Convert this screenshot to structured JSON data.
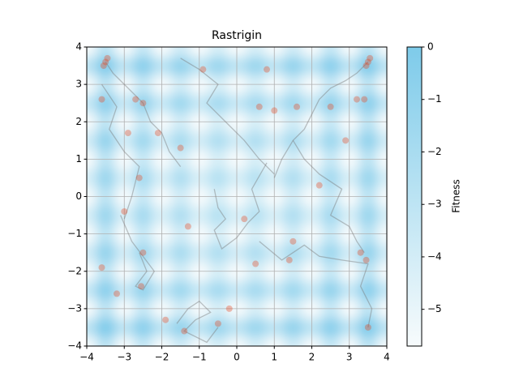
{
  "chart_data": {
    "type": "heatmap-trajectories",
    "title": "Rastrigin",
    "colorbar_label": "Fitness",
    "xlim": [
      -4,
      4
    ],
    "ylim": [
      -4,
      4
    ],
    "xticks": [
      {
        "value": -4,
        "label": "−4"
      },
      {
        "value": -3,
        "label": "−3"
      },
      {
        "value": -2,
        "label": "−2"
      },
      {
        "value": -1,
        "label": "−1"
      },
      0,
      1,
      2,
      3,
      4
    ],
    "yticks": [
      {
        "value": -4,
        "label": "−4"
      },
      {
        "value": -3,
        "label": "−3"
      },
      {
        "value": -2,
        "label": "−2"
      },
      {
        "value": -1,
        "label": "−1"
      },
      0,
      1,
      2,
      3,
      4
    ],
    "grid": true,
    "clim": [
      -5.7,
      0
    ],
    "cticks": [
      0,
      {
        "value": -1,
        "label": "−1"
      },
      {
        "value": -2,
        "label": "−2"
      },
      {
        "value": -3,
        "label": "−3"
      },
      {
        "value": -4,
        "label": "−4"
      },
      {
        "value": -5,
        "label": "−5"
      }
    ],
    "cmap": [
      "#f7fbfc",
      "#7ecbea"
    ],
    "heatmap": {
      "x": [
        -4,
        -3.5,
        -3,
        -2.5,
        -2,
        -1.5,
        -1,
        -0.5,
        0,
        0.5,
        1,
        1.5,
        2,
        2.5,
        3,
        3.5,
        4
      ],
      "y": [
        -4,
        -3.5,
        -3,
        -2.5,
        -2,
        -1.5,
        -1,
        -0.5,
        0,
        0.5,
        1,
        1.5,
        2,
        2.5,
        3,
        3.5,
        4
      ],
      "z": [
        [
          -5.7,
          -2.85,
          -5.7,
          -3.35,
          -5.7,
          -3.85,
          -5.7,
          -4.15,
          -5.7,
          -4.15,
          -5.7,
          -3.85,
          -5.7,
          -3.35,
          -5.7,
          -2.85,
          -5.7
        ],
        [
          -2.85,
          0,
          -2.85,
          -0.5,
          -2.85,
          -1,
          -2.85,
          -1.3,
          -2.85,
          -1.3,
          -2.85,
          -1,
          -2.85,
          -0.5,
          -2.85,
          0,
          -2.85
        ],
        [
          -5.7,
          -2.85,
          -5.7,
          -3.35,
          -5.7,
          -3.85,
          -5.7,
          -4.15,
          -5.7,
          -4.15,
          -5.7,
          -3.85,
          -5.7,
          -3.35,
          -5.7,
          -2.85,
          -5.7
        ],
        [
          -3.35,
          -0.5,
          -3.35,
          -1,
          -3.35,
          -1.5,
          -3.35,
          -1.8,
          -3.35,
          -1.8,
          -3.35,
          -1.5,
          -3.35,
          -1,
          -3.35,
          -0.5,
          -3.35
        ],
        [
          -5.7,
          -2.85,
          -5.7,
          -3.35,
          -5.7,
          -3.85,
          -5.7,
          -4.15,
          -5.7,
          -4.15,
          -5.7,
          -3.85,
          -5.7,
          -3.35,
          -5.7,
          -2.85,
          -5.7
        ],
        [
          -3.85,
          -1,
          -3.85,
          -1.5,
          -3.85,
          -2,
          -3.85,
          -2.3,
          -3.85,
          -2.3,
          -3.85,
          -2,
          -3.85,
          -1.5,
          -3.85,
          -1,
          -3.85
        ],
        [
          -5.7,
          -2.85,
          -5.7,
          -3.35,
          -5.7,
          -3.85,
          -5.7,
          -4.15,
          -5.7,
          -4.15,
          -5.7,
          -3.85,
          -5.7,
          -3.35,
          -5.7,
          -2.85,
          -5.7
        ],
        [
          -4.15,
          -1.3,
          -4.15,
          -1.8,
          -4.15,
          -2.3,
          -4.15,
          -2.6,
          -4.15,
          -2.6,
          -4.15,
          -2.3,
          -4.15,
          -1.8,
          -4.15,
          -1.3,
          -4.15
        ],
        [
          -5.7,
          -2.85,
          -5.7,
          -3.35,
          -5.7,
          -3.85,
          -5.7,
          -4.15,
          -5.7,
          -4.15,
          -5.7,
          -3.85,
          -5.7,
          -3.35,
          -5.7,
          -2.85,
          -5.7
        ],
        [
          -4.15,
          -1.3,
          -4.15,
          -1.8,
          -4.15,
          -2.3,
          -4.15,
          -2.6,
          -4.15,
          -2.6,
          -4.15,
          -2.3,
          -4.15,
          -1.8,
          -4.15,
          -1.3,
          -4.15
        ],
        [
          -5.7,
          -2.85,
          -5.7,
          -3.35,
          -5.7,
          -3.85,
          -5.7,
          -4.15,
          -5.7,
          -4.15,
          -5.7,
          -3.85,
          -5.7,
          -3.35,
          -5.7,
          -2.85,
          -5.7
        ],
        [
          -3.85,
          -1,
          -3.85,
          -1.5,
          -3.85,
          -2,
          -3.85,
          -2.3,
          -3.85,
          -2.3,
          -3.85,
          -2,
          -3.85,
          -1.5,
          -3.85,
          -1,
          -3.85
        ],
        [
          -5.7,
          -2.85,
          -5.7,
          -3.35,
          -5.7,
          -3.85,
          -5.7,
          -4.15,
          -5.7,
          -4.15,
          -5.7,
          -3.85,
          -5.7,
          -3.35,
          -5.7,
          -2.85,
          -5.7
        ],
        [
          -3.35,
          -0.5,
          -3.35,
          -1,
          -3.35,
          -1.5,
          -3.35,
          -1.8,
          -3.35,
          -1.8,
          -3.35,
          -1.5,
          -3.35,
          -1,
          -3.35,
          -0.5,
          -3.35
        ],
        [
          -5.7,
          -2.85,
          -5.7,
          -3.35,
          -5.7,
          -3.85,
          -5.7,
          -4.15,
          -5.7,
          -4.15,
          -5.7,
          -3.85,
          -5.7,
          -3.35,
          -5.7,
          -2.85,
          -5.7
        ],
        [
          -2.85,
          0,
          -2.85,
          -0.5,
          -2.85,
          -1,
          -2.85,
          -1.3,
          -2.85,
          -1.3,
          -2.85,
          -1,
          -2.85,
          -0.5,
          -2.85,
          0,
          -2.85
        ],
        [
          -5.7,
          -2.85,
          -5.7,
          -3.35,
          -5.7,
          -3.85,
          -5.7,
          -4.15,
          -5.7,
          -4.15,
          -5.7,
          -3.85,
          -5.7,
          -3.35,
          -5.7,
          -2.85,
          -5.7
        ]
      ]
    },
    "path_color": "#7a7a7a",
    "paths": [
      {
        "x": [
          -3.5,
          -3.3,
          -3.0,
          -2.7,
          -2.5,
          -2.3,
          -2.0,
          -1.8,
          -1.5
        ],
        "y": [
          3.6,
          3.3,
          3.0,
          2.7,
          2.5,
          2.0,
          1.7,
          1.2,
          0.8
        ]
      },
      {
        "x": [
          3.5,
          3.2,
          2.9,
          2.5,
          2.2,
          2.0,
          1.8,
          1.5,
          1.2,
          1.0
        ],
        "y": [
          3.6,
          3.3,
          3.1,
          2.9,
          2.6,
          2.2,
          1.8,
          1.5,
          1.0,
          0.5
        ]
      },
      {
        "x": [
          -0.6,
          -0.5,
          -0.3,
          -0.6,
          -0.4,
          0,
          0.3,
          0.6,
          0.4,
          0.8
        ],
        "y": [
          0.2,
          -0.3,
          -0.6,
          -0.9,
          -1.4,
          -1.1,
          -0.7,
          -0.4,
          0.2,
          0.9
        ]
      },
      {
        "x": [
          -2.6,
          -2.4,
          -2.7,
          -2.5,
          -2.2,
          -2.8,
          -3.1
        ],
        "y": [
          -1.5,
          -2.0,
          -2.4,
          -2.5,
          -2.0,
          -1.2,
          -0.5
        ]
      },
      {
        "x": [
          -1.6,
          -1.3,
          -1.0,
          -0.7,
          -1.1,
          -1.4,
          -0.8,
          -0.5
        ],
        "y": [
          -3.4,
          -3.0,
          -2.8,
          -3.1,
          -3.3,
          -3.6,
          -3.9,
          -3.5
        ]
      },
      {
        "x": [
          3.4,
          3.2,
          3.0,
          2.5,
          2.8,
          2.2,
          1.8,
          1.5
        ],
        "y": [
          -1.5,
          -1.2,
          -0.8,
          -0.5,
          0.2,
          0.6,
          1.0,
          1.5
        ]
      },
      {
        "x": [
          -1.5,
          -1.0,
          -0.5,
          -0.8,
          -0.3,
          0.2,
          0.6,
          1.0
        ],
        "y": [
          3.7,
          3.4,
          3.0,
          2.5,
          2.0,
          1.5,
          1.0,
          0.6
        ]
      },
      {
        "x": [
          -3.6,
          -3.2,
          -3.4,
          -3.0,
          -2.6,
          -2.8,
          -3.0
        ],
        "y": [
          3.0,
          2.4,
          1.8,
          1.2,
          0.8,
          0.0,
          -0.6
        ]
      },
      {
        "x": [
          3.5,
          3.6,
          3.3,
          3.5,
          2.8,
          2.2,
          1.8,
          1.2,
          0.6
        ],
        "y": [
          -3.5,
          -3.0,
          -2.4,
          -1.8,
          -1.7,
          -1.6,
          -1.3,
          -1.7,
          -1.2
        ]
      }
    ],
    "points": {
      "color": "#e8461e",
      "x": [
        -3.5,
        -3.55,
        -3.45,
        -3.6,
        3.5,
        3.45,
        3.55,
        3.4,
        -2.7,
        -2.5,
        -2.9,
        -2.6,
        -2.5,
        -2.55,
        -3.0,
        -1.5,
        -1.3,
        -0.5,
        0.2,
        0.5,
        1.0,
        1.4,
        1.6,
        0.8,
        2.5,
        2.9,
        3.3,
        3.5,
        3.45,
        -2.1,
        -1.9,
        0.6,
        1.5,
        -0.9,
        -3.6,
        -3.2,
        3.2,
        2.2,
        -1.4,
        -0.2
      ],
      "y": [
        3.6,
        3.5,
        3.7,
        2.6,
        3.6,
        3.5,
        3.7,
        2.6,
        2.6,
        2.5,
        1.7,
        0.5,
        -1.5,
        -2.4,
        -0.4,
        1.3,
        -0.8,
        -3.4,
        -0.6,
        -1.8,
        2.3,
        -1.7,
        2.4,
        3.4,
        2.4,
        1.5,
        -1.5,
        -3.5,
        -1.7,
        1.7,
        -3.3,
        2.4,
        -1.2,
        3.4,
        -1.9,
        -2.6,
        2.6,
        0.3,
        -3.6,
        -3.0
      ]
    }
  }
}
